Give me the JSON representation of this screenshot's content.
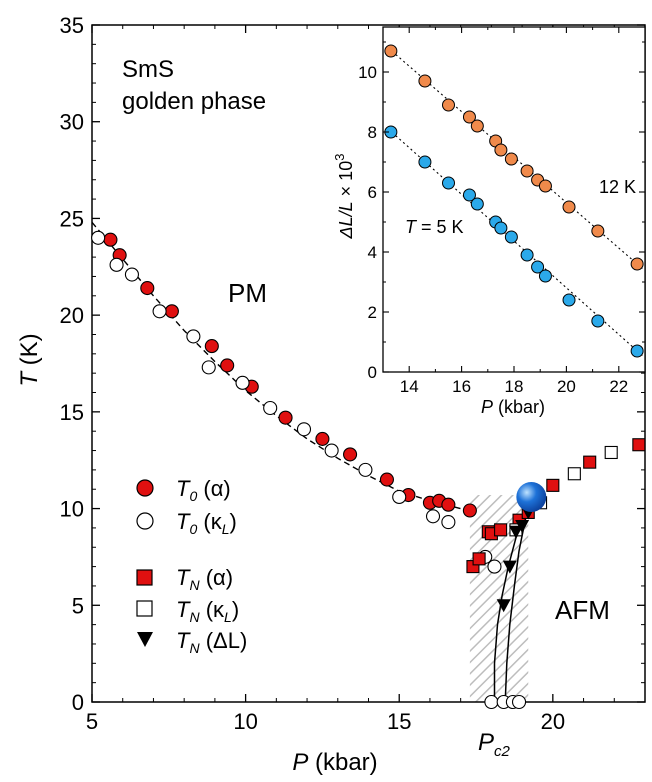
{
  "chart_data": [
    {
      "type": "scatter",
      "xlabel": {
        "var": "P",
        "unit": " (kbar)"
      },
      "ylabel": {
        "var": "T",
        "unit": " (K)"
      },
      "xlim": [
        5,
        23
      ],
      "ylim": [
        0,
        35
      ],
      "x_ticks": [
        5,
        10,
        15,
        20
      ],
      "y_ticks": [
        0,
        5,
        10,
        15,
        20,
        25,
        30,
        35
      ],
      "sample_label": [
        "SmS",
        "golden phase"
      ],
      "phase_labels": {
        "pm": "PM",
        "afm": "AFM"
      },
      "critical_pressure": {
        "label_var": "P",
        "label_sub": "c2",
        "band": [
          17.3,
          19.2
        ],
        "band_top": 10.7
      },
      "critical_point": {
        "x": 19.3,
        "y": 10.6,
        "color": "#1e72d8"
      },
      "colors": {
        "red": "#e01010",
        "blue_point": "#1e72d8",
        "hatch": "#bdbdbd"
      },
      "legend": [
        {
          "marker": "circle-filled",
          "var": "T",
          "sub": "0",
          "rest": " (α)"
        },
        {
          "marker": "circle-open",
          "var": "T",
          "sub": "0",
          "rest": " (κ",
          "rest_sub": "L",
          "rest_end": ")"
        },
        {
          "marker": "square-filled",
          "var": "T",
          "sub": "N",
          "rest": " (α)"
        },
        {
          "marker": "square-open",
          "var": "T",
          "sub": "N",
          "rest": " (κ",
          "rest_sub": "L",
          "rest_end": ")"
        },
        {
          "marker": "triangle-down",
          "var": "T",
          "sub": "N",
          "rest": " (ΔL)"
        }
      ],
      "series": [
        {
          "marker": "circle-filled",
          "color": "#e01010",
          "x": [
            5.6,
            5.9,
            6.8,
            7.6,
            8.9,
            9.4,
            10.2,
            11.3,
            12.5,
            13.4,
            14.6,
            15.3,
            16.0,
            16.3,
            16.6,
            17.3
          ],
          "y": [
            23.9,
            23.1,
            21.4,
            20.2,
            18.4,
            17.4,
            16.3,
            14.7,
            13.6,
            12.8,
            11.5,
            10.7,
            10.3,
            10.4,
            10.2,
            9.9
          ]
        },
        {
          "marker": "circle-open",
          "color": "#ffffff",
          "x": [
            5.2,
            5.8,
            6.3,
            7.2,
            8.3,
            8.8,
            9.9,
            10.8,
            11.9,
            12.8,
            13.9,
            15.0,
            16.1,
            16.6,
            17.8,
            18.1,
            18.0,
            18.4,
            18.7,
            18.9
          ],
          "y": [
            24.0,
            22.6,
            22.1,
            20.2,
            18.9,
            17.3,
            16.5,
            15.2,
            14.1,
            13.0,
            12.0,
            10.6,
            9.6,
            9.3,
            7.5,
            7.0,
            0.0,
            0.0,
            0.0,
            0.0
          ]
        },
        {
          "marker": "square-filled",
          "color": "#e01010",
          "x": [
            17.4,
            17.6,
            17.9,
            18.0,
            18.3,
            18.9,
            19.2,
            20.0,
            21.2,
            22.8
          ],
          "y": [
            7.0,
            7.4,
            8.8,
            8.7,
            8.9,
            9.4,
            9.8,
            11.2,
            12.4,
            13.3
          ]
        },
        {
          "marker": "square-open",
          "color": "#ffffff",
          "x": [
            18.8,
            19.6,
            20.7,
            21.9
          ],
          "y": [
            8.9,
            10.3,
            11.8,
            12.9
          ]
        },
        {
          "marker": "triangle-down",
          "color": "#000000",
          "x": [
            18.4,
            18.6,
            18.8,
            19.0,
            19.2
          ],
          "y": [
            5.0,
            7.0,
            8.8,
            9.1,
            9.8
          ]
        }
      ],
      "fit_line": {
        "x": [
          5.0,
          6.0,
          7.0,
          8.0,
          9.0,
          10.0,
          11.0,
          12.0,
          13.0,
          14.0,
          15.0,
          16.0,
          17.0
        ],
        "y": [
          24.8,
          22.9,
          21.0,
          19.2,
          17.6,
          16.1,
          14.8,
          13.6,
          12.6,
          11.7,
          10.9,
          10.4,
          10.0
        ]
      },
      "boundary_left": {
        "x": [
          18.1,
          18.1,
          18.2,
          18.35,
          18.55,
          18.8,
          19.05,
          19.3
        ],
        "y": [
          0.0,
          2.0,
          4.0,
          5.5,
          7.0,
          8.5,
          9.6,
          10.6
        ]
      },
      "boundary_right": {
        "x": [
          18.45,
          18.5,
          18.6,
          18.75,
          18.9,
          19.1,
          19.3
        ],
        "y": [
          0.0,
          2.0,
          4.0,
          6.0,
          7.8,
          9.4,
          10.6
        ]
      }
    },
    {
      "type": "scatter",
      "xlabel": {
        "var": "P",
        "unit": " (kbar)"
      },
      "ylabel": {
        "var": "ΔL/L",
        "unit": " × 10",
        "sup": "3"
      },
      "xlim": [
        13,
        23
      ],
      "ylim": [
        0,
        11.5
      ],
      "x_ticks": [
        14,
        16,
        18,
        20,
        22
      ],
      "y_ticks": [
        0,
        2,
        4,
        6,
        8,
        10
      ],
      "series": [
        {
          "name": "12 K",
          "color": "#f08a4b",
          "x": [
            13.3,
            14.6,
            15.5,
            16.3,
            16.6,
            17.3,
            17.5,
            17.9,
            18.5,
            18.9,
            19.2,
            20.1,
            21.2,
            22.7
          ],
          "y": [
            10.7,
            9.7,
            8.9,
            8.5,
            8.2,
            7.7,
            7.4,
            7.1,
            6.7,
            6.4,
            6.2,
            5.5,
            4.7,
            3.6
          ],
          "fit": {
            "x": [
              13.2,
              22.9
            ],
            "y": [
              10.8,
              3.45
            ]
          }
        },
        {
          "name": "5 K",
          "name_prefix": "T",
          "name_mid": " = ",
          "color": "#2ba9ea",
          "x": [
            13.3,
            14.6,
            15.5,
            16.3,
            16.6,
            17.3,
            17.5,
            17.9,
            18.5,
            18.9,
            19.2,
            20.1,
            21.2,
            22.7
          ],
          "y": [
            8.0,
            7.0,
            6.3,
            5.9,
            5.6,
            5.0,
            4.8,
            4.5,
            3.9,
            3.5,
            3.2,
            2.4,
            1.7,
            0.7
          ],
          "fit": {
            "x": [
              13.2,
              22.9
            ],
            "y": [
              8.1,
              0.55
            ]
          }
        }
      ]
    }
  ]
}
